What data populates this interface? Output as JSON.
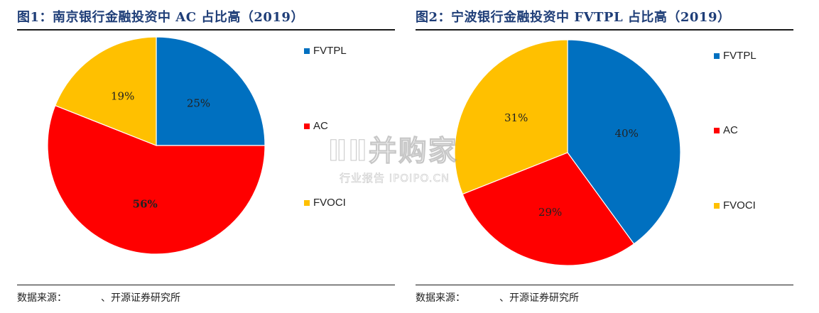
{
  "colors": {
    "FVTPL": "#0070C0",
    "AC": "#FF0000",
    "FVOCI": "#FFC000",
    "title": "#1F3E78"
  },
  "chart_data": [
    {
      "type": "pie",
      "title": "图1：南京银行金融投资中 AC 占比高（2019）",
      "categories": [
        "FVTPL",
        "AC",
        "FVOCI"
      ],
      "values": [
        25,
        56,
        19
      ],
      "labels": [
        "25%",
        "56%",
        "19%"
      ],
      "bold_labels": [
        false,
        true,
        false
      ],
      "start_angle_deg": 0,
      "direction": "clockwise",
      "legend": {
        "placement": "right",
        "entries": [
          "FVTPL",
          "AC",
          "FVOCI"
        ]
      },
      "source": "数据来源：",
      "source_org": "、开源证券研究所"
    },
    {
      "type": "pie",
      "title": "图2：宁波银行金融投资中 FVTPL 占比高（2019）",
      "categories": [
        "FVTPL",
        "AC",
        "FVOCI"
      ],
      "values": [
        40,
        29,
        31
      ],
      "labels": [
        "40%",
        "29%",
        "31%"
      ],
      "bold_labels": [
        false,
        false,
        false
      ],
      "start_angle_deg": 0,
      "direction": "clockwise",
      "legend": {
        "placement": "right",
        "entries": [
          "FVTPL",
          "AC",
          "FVOCI"
        ]
      },
      "source": "数据来源：",
      "source_org": "、开源证券研究所"
    }
  ],
  "watermark": {
    "main": "ⅡⅡ并购家",
    "sub": "行业报告 IPOIPO.CN"
  }
}
